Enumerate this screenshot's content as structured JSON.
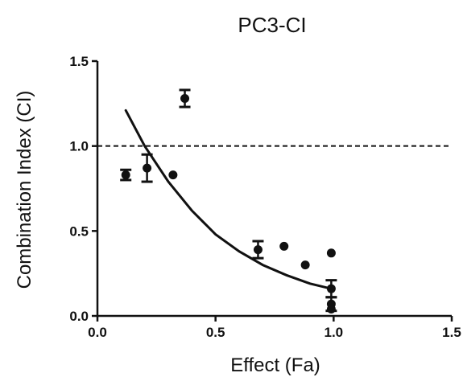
{
  "chart_data": {
    "type": "scatter",
    "title": "PC3-CI",
    "xlabel": "Effect (Fa)",
    "ylabel": "Combination Index (CI)",
    "xlim": [
      0.0,
      1.5
    ],
    "ylim": [
      0.0,
      1.5
    ],
    "xticks": [
      "0.0",
      "0.5",
      "1.0",
      "1.5"
    ],
    "yticks": [
      "0.0",
      "0.5",
      "1.0",
      "1.5"
    ],
    "reference_line": {
      "y": 1.0,
      "style": "dashed"
    },
    "points": [
      {
        "x": 0.12,
        "y": 0.83,
        "err": 0.03
      },
      {
        "x": 0.21,
        "y": 0.87,
        "err": 0.08
      },
      {
        "x": 0.32,
        "y": 0.83
      },
      {
        "x": 0.37,
        "y": 1.28,
        "err": 0.05
      },
      {
        "x": 0.68,
        "y": 0.39,
        "err": 0.05
      },
      {
        "x": 0.79,
        "y": 0.41
      },
      {
        "x": 0.88,
        "y": 0.3
      },
      {
        "x": 0.99,
        "y": 0.37
      },
      {
        "x": 0.99,
        "y": 0.16,
        "err": 0.05
      },
      {
        "x": 0.99,
        "y": 0.07,
        "err": 0.04
      },
      {
        "x": 0.99,
        "y": 0.04
      }
    ],
    "fit_curve": [
      {
        "x": 0.12,
        "y": 1.21
      },
      {
        "x": 0.2,
        "y": 1.0
      },
      {
        "x": 0.3,
        "y": 0.79
      },
      {
        "x": 0.4,
        "y": 0.62
      },
      {
        "x": 0.5,
        "y": 0.48
      },
      {
        "x": 0.6,
        "y": 0.38
      },
      {
        "x": 0.7,
        "y": 0.3
      },
      {
        "x": 0.8,
        "y": 0.24
      },
      {
        "x": 0.9,
        "y": 0.19
      },
      {
        "x": 0.99,
        "y": 0.16
      }
    ],
    "colors": {
      "marker": "#111111",
      "line": "#111111",
      "background": "#ffffff"
    }
  }
}
